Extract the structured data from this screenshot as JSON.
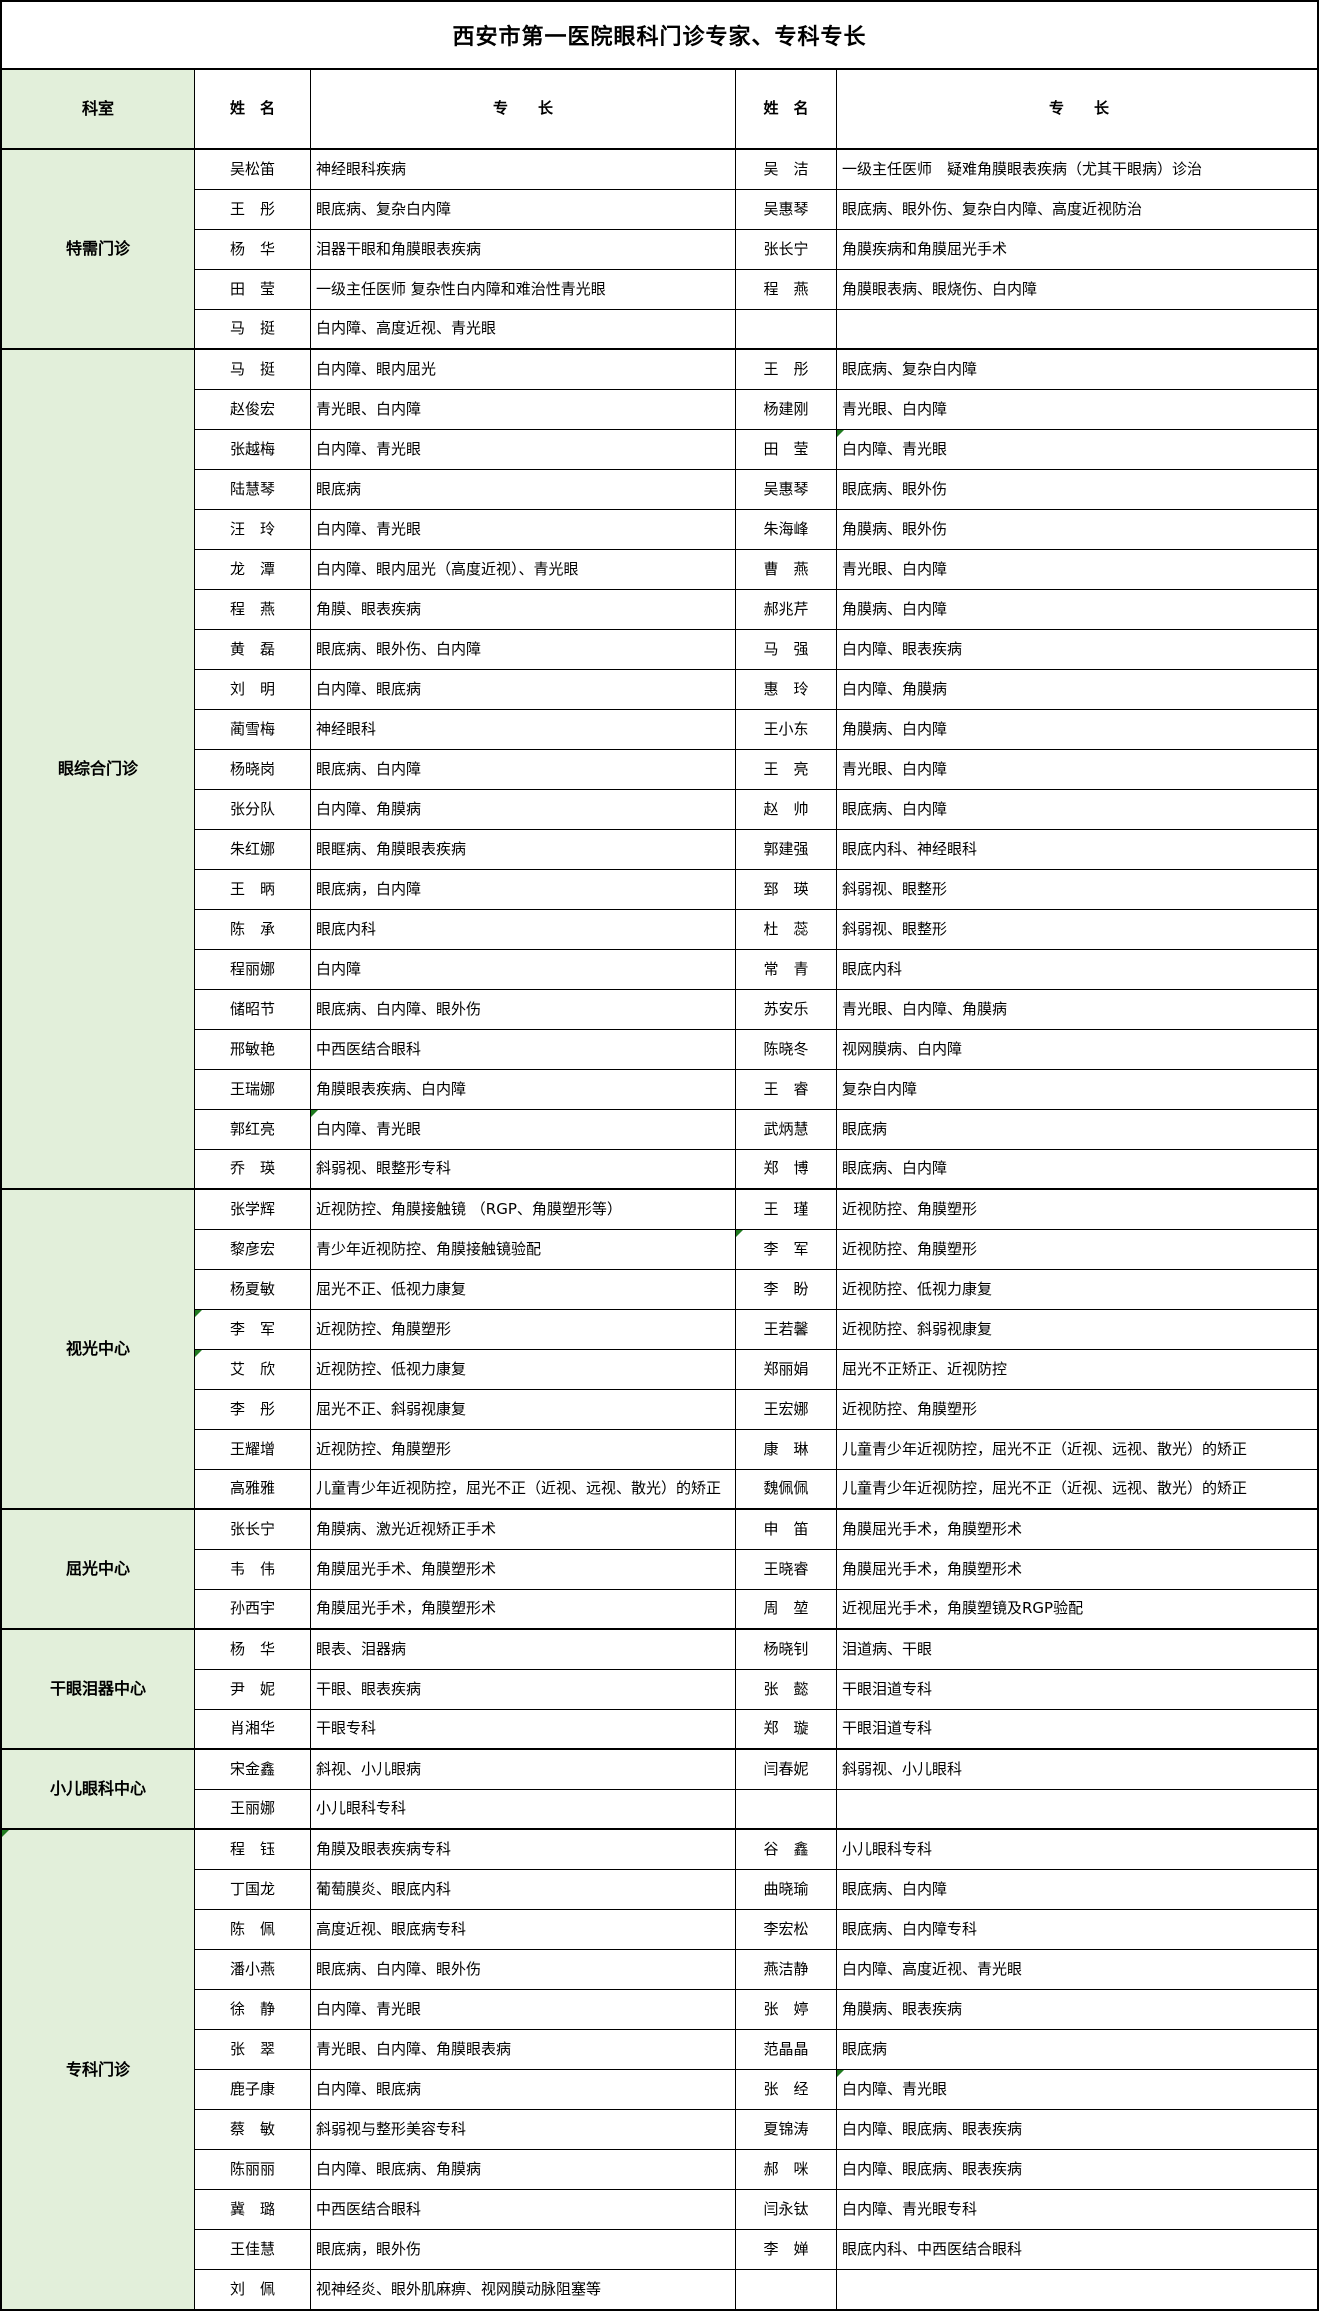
{
  "title": "西安市第一医院眼科门诊专家、专科专长",
  "header": {
    "dept": "科室",
    "name": "姓　名",
    "spec": "专　　长"
  },
  "colors": {
    "dept_bg": "#e2efda",
    "border": "#000000",
    "flag": "#1f7a1f"
  },
  "sections": [
    {
      "dept": "特需门诊",
      "rows": [
        {
          "name_l": "吴松笛",
          "spec_l": "神经眼科疾病",
          "name_r": "吴　洁",
          "spec_r": "一级主任医师　疑难角膜眼表疾病（尤其干眼病）诊治"
        },
        {
          "name_l": "王　彤",
          "spec_l": "眼底病、复杂白内障",
          "name_r": "吴惠琴",
          "spec_r": "眼底病、眼外伤、复杂白内障、高度近视防治"
        },
        {
          "name_l": "杨　华",
          "spec_l": "泪器干眼和角膜眼表疾病",
          "name_r": "张长宁",
          "spec_r": "角膜疾病和角膜屈光手术"
        },
        {
          "name_l": "田　莹",
          "spec_l": "一级主任医师 复杂性白内障和难治性青光眼",
          "name_r": "程　燕",
          "spec_r": "角膜眼表病、眼烧伤、白内障"
        },
        {
          "name_l": "马　挺",
          "spec_l": "白内障、高度近视、青光眼",
          "name_r": "",
          "spec_r": ""
        }
      ]
    },
    {
      "dept": "眼综合门诊",
      "rows": [
        {
          "name_l": "马　挺",
          "spec_l": "白内障、眼内屈光",
          "name_r": "王　彤",
          "spec_r": "眼底病、复杂白内障"
        },
        {
          "name_l": "赵俊宏",
          "spec_l": "青光眼、白内障",
          "name_r": "杨建刚",
          "spec_r": "青光眼、白内障"
        },
        {
          "name_l": "张越梅",
          "spec_l": "白内障、青光眼",
          "name_r": "田　莹",
          "spec_r": "白内障、青光眼",
          "markers": [
            "spec_r"
          ]
        },
        {
          "name_l": "陆慧琴",
          "spec_l": "眼底病",
          "name_r": "吴惠琴",
          "spec_r": "眼底病、眼外伤"
        },
        {
          "name_l": "汪　玲",
          "spec_l": "白内障、青光眼",
          "name_r": "朱海峰",
          "spec_r": "角膜病、眼外伤"
        },
        {
          "name_l": "龙　潭",
          "spec_l": "白内障、眼内屈光（高度近视）、青光眼",
          "name_r": "曹　燕",
          "spec_r": "青光眼、白内障"
        },
        {
          "name_l": "程　燕",
          "spec_l": "角膜、眼表疾病",
          "name_r": "郝兆芹",
          "spec_r": "角膜病、白内障"
        },
        {
          "name_l": "黄　磊",
          "spec_l": "眼底病、眼外伤、白内障",
          "name_r": "马　强",
          "spec_r": "白内障、眼表疾病"
        },
        {
          "name_l": "刘　明",
          "spec_l": "白内障、眼底病",
          "name_r": "惠　玲",
          "spec_r": "白内障、角膜病"
        },
        {
          "name_l": "蔺雪梅",
          "spec_l": "神经眼科",
          "name_r": "王小东",
          "spec_r": "角膜病、白内障"
        },
        {
          "name_l": "杨晓岗",
          "spec_l": "眼底病、白内障",
          "name_r": "王　亮",
          "spec_r": "青光眼、白内障"
        },
        {
          "name_l": "张分队",
          "spec_l": "白内障、角膜病",
          "name_r": "赵　帅",
          "spec_r": "眼底病、白内障"
        },
        {
          "name_l": "朱红娜",
          "spec_l": "眼眶病、角膜眼表疾病",
          "name_r": "郭建强",
          "spec_r": "眼底内科、神经眼科"
        },
        {
          "name_l": "王　昞",
          "spec_l": "眼底病，白内障",
          "name_r": "郅　瑛",
          "spec_r": "斜弱视、眼整形"
        },
        {
          "name_l": "陈　承",
          "spec_l": "眼底内科",
          "name_r": "杜　蕊",
          "spec_r": "斜弱视、眼整形"
        },
        {
          "name_l": "程丽娜",
          "spec_l": "白内障",
          "name_r": "常　青",
          "spec_r": "眼底内科"
        },
        {
          "name_l": "储昭节",
          "spec_l": "眼底病、白内障、眼外伤",
          "name_r": "苏安乐",
          "spec_r": "青光眼、白内障、角膜病"
        },
        {
          "name_l": "邢敏艳",
          "spec_l": "中西医结合眼科",
          "name_r": "陈晓冬",
          "spec_r": "视网膜病、白内障"
        },
        {
          "name_l": "王瑞娜",
          "spec_l": "角膜眼表疾病、白内障",
          "name_r": "王　睿",
          "spec_r": "复杂白内障"
        },
        {
          "name_l": "郭红亮",
          "spec_l": "白内障、青光眼",
          "name_r": "武炳慧",
          "spec_r": "眼底病",
          "markers": [
            "spec_l"
          ]
        },
        {
          "name_l": "乔　瑛",
          "spec_l": "斜弱视、眼整形专科",
          "name_r": "郑　博",
          "spec_r": "眼底病、白内障"
        }
      ]
    },
    {
      "dept": "视光中心",
      "rows": [
        {
          "name_l": "张学辉",
          "spec_l": "近视防控、角膜接触镜 （RGP、角膜塑形等）",
          "name_r": "王　瑾",
          "spec_r": "近视防控、角膜塑形"
        },
        {
          "name_l": "黎彦宏",
          "spec_l": "青少年近视防控、角膜接触镜验配",
          "name_r": "李　军",
          "spec_r": "近视防控、角膜塑形",
          "markers": [
            "name_r"
          ]
        },
        {
          "name_l": "杨夏敏",
          "spec_l": "屈光不正、低视力康复",
          "name_r": "李　盼",
          "spec_r": "近视防控、低视力康复"
        },
        {
          "name_l": "李　军",
          "spec_l": "近视防控、角膜塑形",
          "name_r": "王若馨",
          "spec_r": "近视防控、斜弱视康复",
          "markers": [
            "name_l"
          ]
        },
        {
          "name_l": "艾　欣",
          "spec_l": "近视防控、低视力康复",
          "name_r": "郑丽娟",
          "spec_r": "屈光不正矫正、近视防控",
          "markers": [
            "name_l"
          ]
        },
        {
          "name_l": "李　彤",
          "spec_l": "屈光不正、斜弱视康复",
          "name_r": "王宏娜",
          "spec_r": "近视防控、角膜塑形"
        },
        {
          "name_l": "王耀增",
          "spec_l": "近视防控、角膜塑形",
          "name_r": "康　琳",
          "spec_r": "儿童青少年近视防控，屈光不正（近视、远视、散光）的矫正"
        },
        {
          "name_l": "高雅雅",
          "spec_l": "儿童青少年近视防控，屈光不正（近视、远视、散光）的矫正",
          "name_r": "魏佩佩",
          "spec_r": "儿童青少年近视防控，屈光不正（近视、远视、散光）的矫正"
        }
      ]
    },
    {
      "dept": "屈光中心",
      "rows": [
        {
          "name_l": "张长宁",
          "spec_l": "角膜病、激光近视矫正手术",
          "name_r": "申　笛",
          "spec_r": "角膜屈光手术，角膜塑形术"
        },
        {
          "name_l": "韦　伟",
          "spec_l": "角膜屈光手术、角膜塑形术",
          "name_r": "王晓睿",
          "spec_r": "角膜屈光手术，角膜塑形术"
        },
        {
          "name_l": "孙西宇",
          "spec_l": "角膜屈光手术，角膜塑形术",
          "name_r": "周　堃",
          "spec_r": "近视屈光手术，角膜塑镜及RGP验配"
        }
      ]
    },
    {
      "dept": "干眼泪器中心",
      "rows": [
        {
          "name_l": "杨　华",
          "spec_l": "眼表、泪器病",
          "name_r": "杨晓钊",
          "spec_r": "泪道病、干眼"
        },
        {
          "name_l": "尹　妮",
          "spec_l": "干眼、眼表疾病",
          "name_r": "张　懿",
          "spec_r": "干眼泪道专科"
        },
        {
          "name_l": "肖湘华",
          "spec_l": "干眼专科",
          "name_r": "郑　璇",
          "spec_r": "干眼泪道专科"
        }
      ]
    },
    {
      "dept": "小儿眼科中心",
      "rows": [
        {
          "name_l": "宋金鑫",
          "spec_l": "斜视、小儿眼病",
          "name_r": "闫春妮",
          "spec_r": "斜弱视、小儿眼科"
        },
        {
          "name_l": "王丽娜",
          "spec_l": "小儿眼科专科",
          "name_r": "",
          "spec_r": ""
        }
      ]
    },
    {
      "dept": "专科门诊",
      "dept_marker": true,
      "rows": [
        {
          "name_l": "程　钰",
          "spec_l": "角膜及眼表疾病专科",
          "name_r": "谷　鑫",
          "spec_r": "小儿眼科专科"
        },
        {
          "name_l": "丁国龙",
          "spec_l": "葡萄膜炎、眼底内科",
          "name_r": "曲晓瑜",
          "spec_r": "眼底病、白内障"
        },
        {
          "name_l": "陈　佩",
          "spec_l": "高度近视、眼底病专科",
          "name_r": "李宏松",
          "spec_r": "眼底病、白内障专科"
        },
        {
          "name_l": "潘小燕",
          "spec_l": "眼底病、白内障、眼外伤",
          "name_r": "燕洁静",
          "spec_r": "白内障、高度近视、青光眼"
        },
        {
          "name_l": "徐　静",
          "spec_l": "白内障、青光眼",
          "name_r": "张　婷",
          "spec_r": "角膜病、眼表疾病"
        },
        {
          "name_l": "张　翠",
          "spec_l": "青光眼、白内障、角膜眼表病",
          "name_r": "范晶晶",
          "spec_r": "眼底病"
        },
        {
          "name_l": "鹿子康",
          "spec_l": "白内障、眼底病",
          "name_r": "张　经",
          "spec_r": "白内障、青光眼",
          "markers": [
            "spec_r"
          ]
        },
        {
          "name_l": "蔡　敏",
          "spec_l": "斜弱视与整形美容专科",
          "name_r": "夏锦涛",
          "spec_r": "白内障、眼底病、眼表疾病"
        },
        {
          "name_l": "陈丽丽",
          "spec_l": "白内障、眼底病、角膜病",
          "name_r": "郝　咪",
          "spec_r": "白内障、眼底病、眼表疾病"
        },
        {
          "name_l": "冀　璐",
          "spec_l": "中西医结合眼科",
          "name_r": "闫永钛",
          "spec_r": "白内障、青光眼专科"
        },
        {
          "name_l": "王佳慧",
          "spec_l": "眼底病，眼外伤",
          "name_r": "李　婵",
          "spec_r": "眼底内科、中西医结合眼科"
        },
        {
          "name_l": "刘　佩",
          "spec_l": "视神经炎、眼外肌麻痹、视网膜动脉阻塞等",
          "name_r": "",
          "spec_r": ""
        }
      ]
    }
  ]
}
